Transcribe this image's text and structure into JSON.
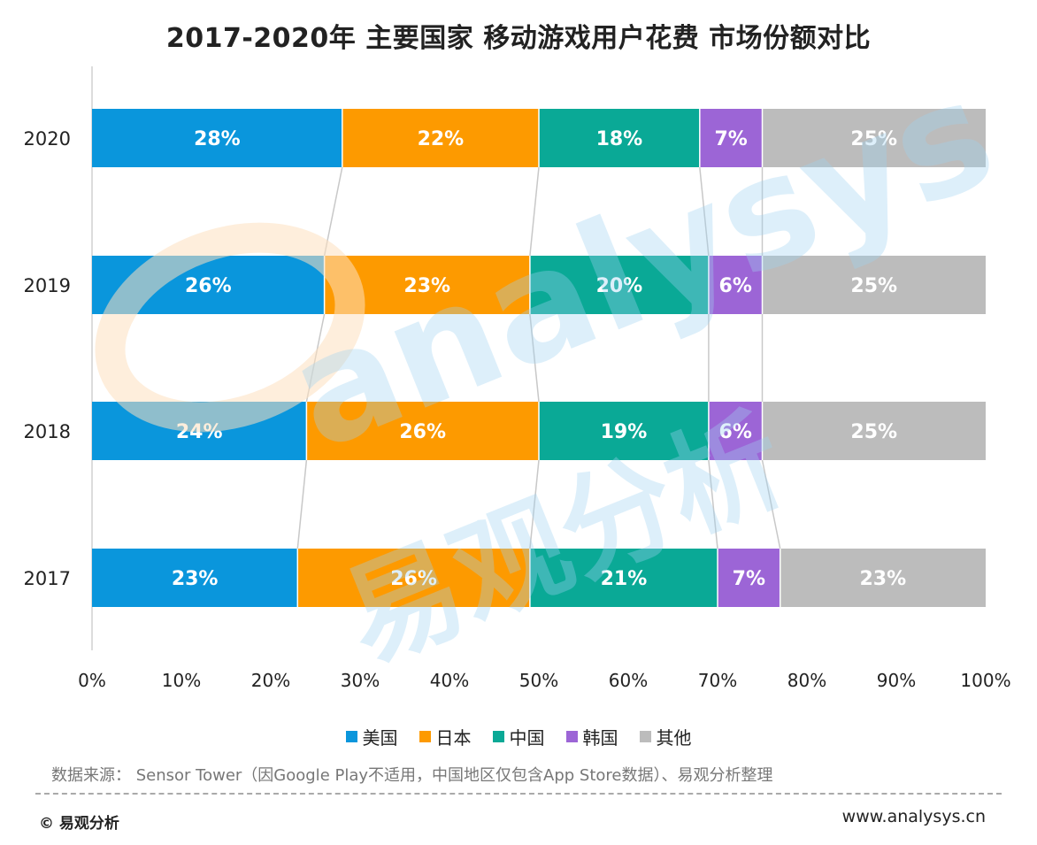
{
  "title": "2017-2020年 主要国家 移动游戏用户花费 市场份额对比",
  "watermark": {
    "latin": "analysys",
    "chinese": "易观分析"
  },
  "chart_data": {
    "type": "bar",
    "orientation": "horizontal",
    "stacked": "percent",
    "categories": [
      "2020",
      "2019",
      "2018",
      "2017"
    ],
    "series": [
      {
        "name": "美国",
        "color": "#0a96dc",
        "values": [
          28,
          26,
          24,
          23
        ],
        "labels": [
          "28%",
          "26%",
          "24%",
          "23%"
        ]
      },
      {
        "name": "日本",
        "color": "#fd9a00",
        "values": [
          22,
          23,
          26,
          26
        ],
        "labels": [
          "22%",
          "23%",
          "26%",
          "26%"
        ]
      },
      {
        "name": "中国",
        "color": "#0aa996",
        "values": [
          18,
          20,
          19,
          21
        ],
        "labels": [
          "18%",
          "20%",
          "19%",
          "21%"
        ]
      },
      {
        "name": "韩国",
        "color": "#9c65d6",
        "values": [
          7,
          6,
          6,
          7
        ],
        "labels": [
          "7%",
          "6%",
          "6%",
          "7%"
        ]
      },
      {
        "name": "其他",
        "color": "#bcbcbc",
        "values": [
          25,
          25,
          25,
          23
        ],
        "labels": [
          "25%",
          "25%",
          "25%",
          "23%"
        ]
      }
    ],
    "xticks": [
      "0%",
      "10%",
      "20%",
      "30%",
      "40%",
      "50%",
      "60%",
      "70%",
      "80%",
      "90%",
      "100%"
    ],
    "xlim": [
      0,
      100
    ],
    "legend_position": "bottom",
    "grid": false
  },
  "source": "数据来源： Sensor Tower（因Google Play不适用，中国地区仅包含App Store数据）、易观分析整理",
  "copyright": "© 易观分析",
  "website": "www.analysys.cn"
}
